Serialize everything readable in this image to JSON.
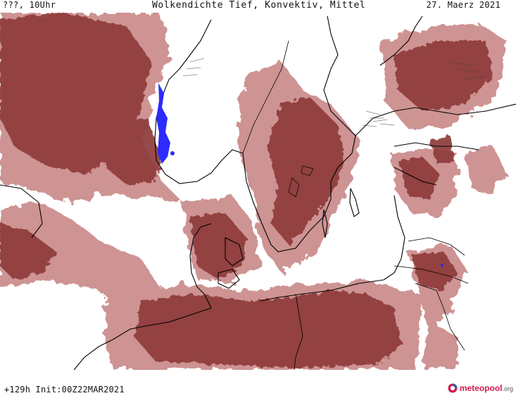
{
  "header": {
    "run_label": "???, 10Uhr",
    "title": "Wolkendichte  Tief, Konvektiv, Mittel",
    "date": "27. Maerz 2021"
  },
  "footer": {
    "forecast_info": "+129h  Init:00Z22MAR2021",
    "logo_name": "meteopool",
    "logo_tld": ".org"
  },
  "map": {
    "region": "Northern Europe / Baltic Sea",
    "cloud_color": "#8e3a3a",
    "cloud_light_color": "#c98888",
    "coastline_color": "#000000",
    "snow_color": "#2b2bff"
  },
  "colors": {
    "logo_accent": "#d11b4c"
  }
}
